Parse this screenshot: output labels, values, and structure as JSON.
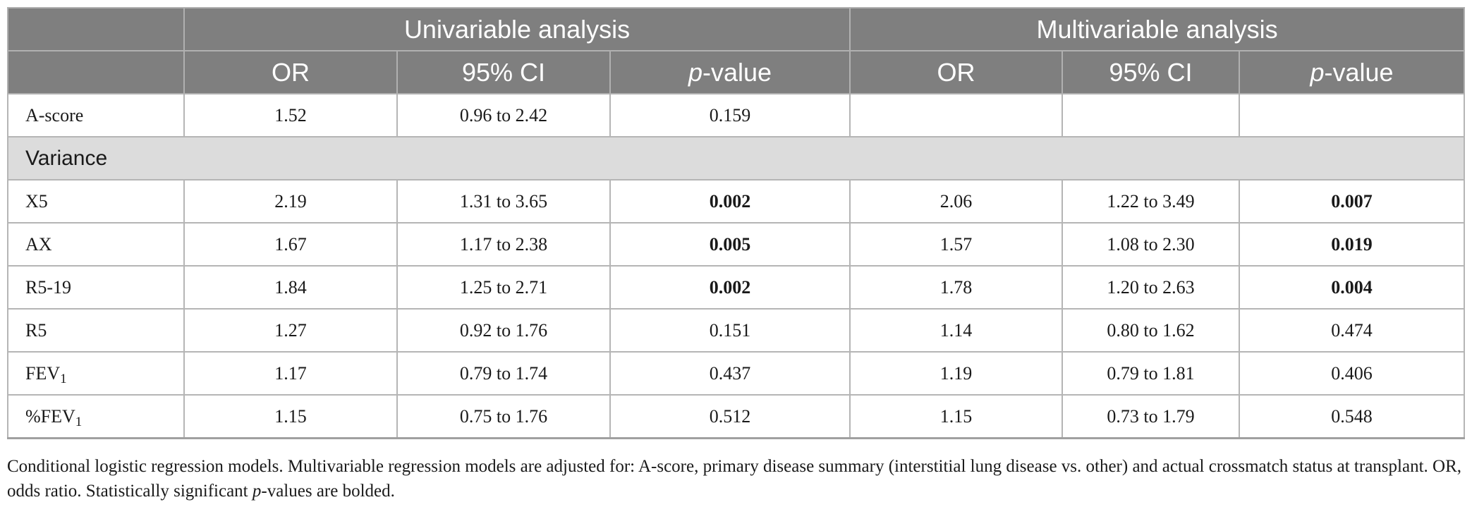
{
  "header": {
    "group_univariable": "Univariable analysis",
    "group_multivariable": "Multivariable analysis",
    "col_or": "OR",
    "col_ci": "95% CI",
    "col_p_italic": "p",
    "col_p_rest": "-value"
  },
  "rows_top": [
    {
      "label": "A-score",
      "uni_or": "1.52",
      "uni_ci": "0.96 to 2.42",
      "uni_p": "0.159",
      "multi_or": "",
      "multi_ci": "",
      "multi_p": ""
    }
  ],
  "section_label": "Variance",
  "rows": [
    {
      "label": "X5",
      "sub": "",
      "uni_or": "2.19",
      "uni_ci": "1.31 to 3.65",
      "uni_p": "0.002",
      "uni_bold": true,
      "multi_or": "2.06",
      "multi_ci": "1.22 to 3.49",
      "multi_p": "0.007",
      "multi_bold": true
    },
    {
      "label": "AX",
      "sub": "",
      "uni_or": "1.67",
      "uni_ci": "1.17 to 2.38",
      "uni_p": "0.005",
      "uni_bold": true,
      "multi_or": "1.57",
      "multi_ci": "1.08 to 2.30",
      "multi_p": "0.019",
      "multi_bold": true
    },
    {
      "label": "R5-19",
      "sub": "",
      "uni_or": "1.84",
      "uni_ci": "1.25 to 2.71",
      "uni_p": "0.002",
      "uni_bold": true,
      "multi_or": "1.78",
      "multi_ci": "1.20 to 2.63",
      "multi_p": "0.004",
      "multi_bold": true
    },
    {
      "label": "R5",
      "sub": "",
      "uni_or": "1.27",
      "uni_ci": "0.92 to 1.76",
      "uni_p": "0.151",
      "uni_bold": false,
      "multi_or": "1.14",
      "multi_ci": "0.80 to 1.62",
      "multi_p": "0.474",
      "multi_bold": false
    },
    {
      "label": "FEV",
      "sub": "1",
      "uni_or": "1.17",
      "uni_ci": "0.79 to 1.74",
      "uni_p": "0.437",
      "uni_bold": false,
      "multi_or": "1.19",
      "multi_ci": "0.79 to 1.81",
      "multi_p": "0.406",
      "multi_bold": false
    },
    {
      "label": "%FEV",
      "sub": "1",
      "uni_or": "1.15",
      "uni_ci": "0.75 to 1.76",
      "uni_p": "0.512",
      "uni_bold": false,
      "multi_or": "1.15",
      "multi_ci": "0.73 to 1.79",
      "multi_p": "0.548",
      "multi_bold": false
    }
  ],
  "footnote": {
    "part1": "Conditional logistic regression models. Multivariable regression models are adjusted for: A-score, primary disease summary (interstitial lung disease vs. other) and actual crossmatch status at transplant. OR, odds ratio. Statistically significant ",
    "part2_italic": "p",
    "part3": "-values are bolded."
  }
}
